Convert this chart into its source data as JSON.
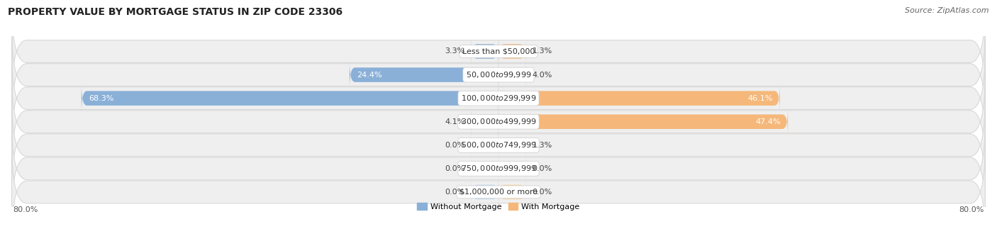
{
  "title": "PROPERTY VALUE BY MORTGAGE STATUS IN ZIP CODE 23306",
  "source": "Source: ZipAtlas.com",
  "categories": [
    "Less than $50,000",
    "$50,000 to $99,999",
    "$100,000 to $299,999",
    "$300,000 to $499,999",
    "$500,000 to $749,999",
    "$750,000 to $999,999",
    "$1,000,000 or more"
  ],
  "without_mortgage": [
    3.3,
    24.4,
    68.3,
    4.1,
    0.0,
    0.0,
    0.0
  ],
  "with_mortgage": [
    1.3,
    4.0,
    46.1,
    47.4,
    1.3,
    0.0,
    0.0
  ],
  "color_without": "#8ab0d8",
  "color_with": "#f5b87a",
  "color_without_light": "#c5d8ee",
  "color_with_light": "#fad5a5",
  "xlim_left": -80,
  "xlim_right": 80,
  "x_left_label": "80.0%",
  "x_right_label": "80.0%",
  "row_bg_color": "#efefef",
  "row_edge_color": "#d8d8d8",
  "bar_height": 0.62,
  "title_fontsize": 10,
  "source_fontsize": 8,
  "value_fontsize": 8,
  "legend_fontsize": 8,
  "category_fontsize": 8
}
